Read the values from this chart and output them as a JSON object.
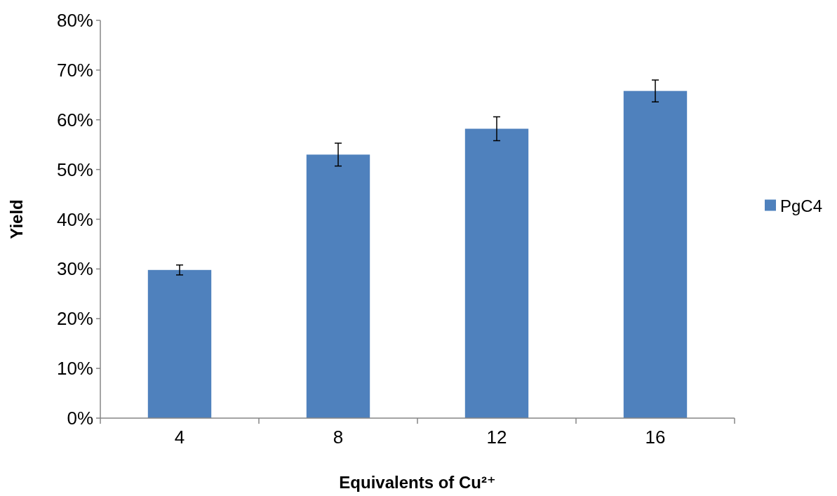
{
  "chart_data": {
    "type": "bar",
    "xlabel": "Equivalents of Cu²⁺",
    "ylabel": "Yield",
    "categories": [
      "4",
      "8",
      "12",
      "16"
    ],
    "series": [
      {
        "name": "PgC4",
        "color": "#4f81bd",
        "values": [
          29.8,
          53,
          58.2,
          65.8
        ],
        "errors": [
          1,
          2.3,
          2.4,
          2.2
        ]
      }
    ],
    "ylim": [
      0,
      80
    ],
    "yticks": [
      {
        "value": 0,
        "label": "0%"
      },
      {
        "value": 10,
        "label": "10%"
      },
      {
        "value": 20,
        "label": "20%"
      },
      {
        "value": 30,
        "label": "30%"
      },
      {
        "value": 40,
        "label": "40%"
      },
      {
        "value": 50,
        "label": "50%"
      },
      {
        "value": 60,
        "label": "60%"
      },
      {
        "value": 70,
        "label": "70%"
      },
      {
        "value": 80,
        "label": "80%"
      }
    ],
    "legend": "right"
  }
}
